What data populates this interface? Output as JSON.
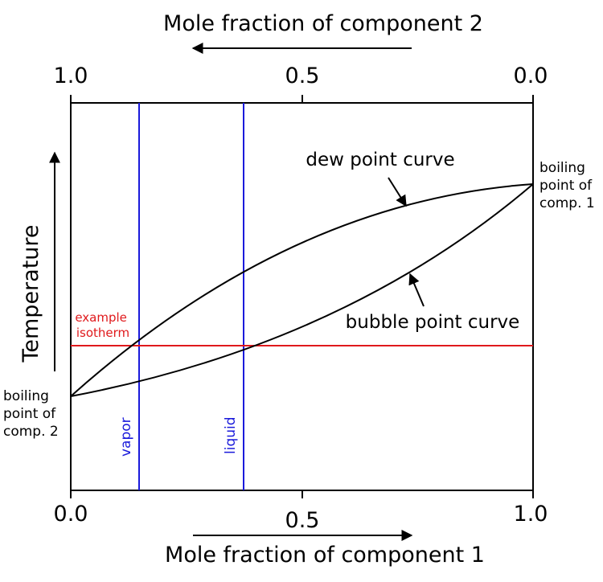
{
  "top_axis": {
    "title": "Mole fraction of component 2",
    "ticks": [
      "1.0",
      "0.5",
      "0.0"
    ]
  },
  "bottom_axis": {
    "title": "Mole fraction of component 1",
    "ticks": [
      "0.0",
      "0.5",
      "1.0"
    ]
  },
  "left_axis": {
    "title": "Temperature"
  },
  "labels": {
    "dew_point_curve": "dew point curve",
    "bubble_point_curve": "bubble point curve",
    "isotherm_line1": "example",
    "isotherm_line2": "isotherm",
    "vapor": "vapor",
    "liquid": "liquid",
    "bp1": [
      "boiling",
      "point of",
      "comp. 1"
    ],
    "bp2": [
      "boiling",
      "point of",
      "comp. 2"
    ]
  },
  "colors": {
    "curve": "#000000",
    "isotherm": "#e0191c",
    "tie_lines": "#1a1adb"
  }
}
